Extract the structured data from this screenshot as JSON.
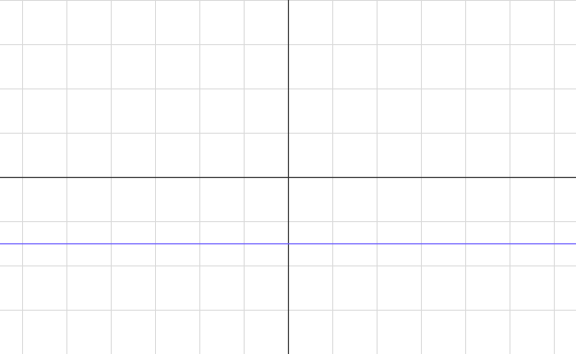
{
  "graph": {
    "background_color": "#ffffff",
    "grid_color": "#d9d9d9",
    "axis_color": "#333333",
    "grid_step": 1,
    "x_range": [
      -6.5,
      6.5
    ],
    "y_range": [
      -4,
      4
    ],
    "grid_visible": true,
    "axes_visible": true
  },
  "chart_data": {
    "type": "line",
    "x_range": [
      -6.5,
      6.5
    ],
    "y_range": [
      -4,
      4
    ],
    "grid": true,
    "series": [
      {
        "color": "#6b5cff",
        "x": [
          -6.5,
          6.5
        ],
        "y": [
          -1.5,
          -1.5
        ]
      }
    ]
  }
}
